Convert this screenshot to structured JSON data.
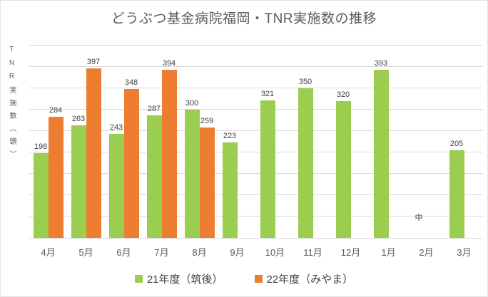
{
  "chart_data": {
    "type": "bar",
    "title": "どうぶつ基金病院福岡・TNR実施数の推移",
    "ylabel": "TNR実施数（頭）",
    "xlabel": "",
    "categories": [
      "4月",
      "5月",
      "6月",
      "7月",
      "8月",
      "9月",
      "10月",
      "11月",
      "12月",
      "1月",
      "2月",
      "3月"
    ],
    "series": [
      {
        "name": "21年度（筑後）",
        "color": "#9ACD50",
        "values": [
          198,
          263,
          243,
          287,
          300,
          223,
          321,
          350,
          320,
          393,
          null,
          205
        ]
      },
      {
        "name": "22年度（みやま）",
        "color": "#ED7D31",
        "values": [
          284,
          397,
          348,
          394,
          259,
          null,
          null,
          null,
          null,
          null,
          null,
          null
        ]
      }
    ],
    "ylim": [
      0,
      450
    ],
    "grid_step": 50,
    "grid": true,
    "y_tick_labels_visible": false,
    "legend_position": "bottom",
    "annotations": [
      {
        "text": "中",
        "category": "2月"
      }
    ]
  },
  "colors": {
    "grid": "#D9D9D9",
    "axis": "#D9D9D9",
    "title_text": "#595959",
    "data_label_text": "#404040",
    "axis_text": "#595959",
    "background": "#FFFFFF"
  }
}
